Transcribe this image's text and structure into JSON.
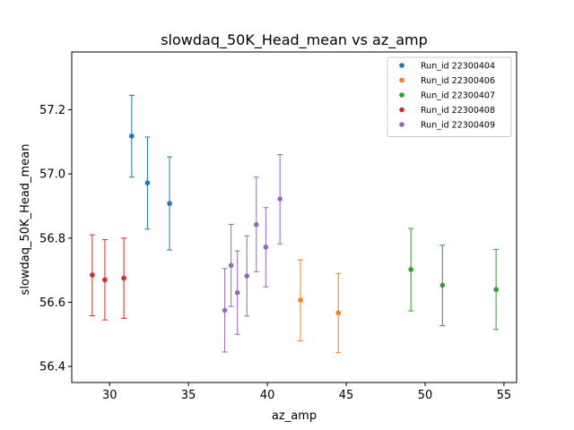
{
  "chart_data": {
    "type": "scatter",
    "title": "slowdaq_50K_Head_mean vs az_amp",
    "xlabel": "az_amp",
    "ylabel": "slowdaq_50K_Head_mean",
    "xlim": [
      27.6,
      55.8
    ],
    "ylim": [
      56.35,
      57.38
    ],
    "xticks": [
      30,
      35,
      40,
      45,
      50,
      55
    ],
    "yticks": [
      56.4,
      56.6,
      56.8,
      57.0,
      57.2
    ],
    "xtick_labels": [
      "30",
      "35",
      "40",
      "45",
      "50",
      "55"
    ],
    "ytick_labels": [
      "56.4",
      "56.6",
      "56.8",
      "57.0",
      "57.2"
    ],
    "legend_position": "top-right",
    "error_bars": true,
    "series": [
      {
        "name": "Run_id 22300404",
        "color": "#1f77b4",
        "points": [
          {
            "x": 31.4,
            "y": 57.118,
            "ylow": 56.99,
            "yhigh": 57.245
          },
          {
            "x": 32.4,
            "y": 56.972,
            "ylow": 56.828,
            "yhigh": 57.115
          },
          {
            "x": 33.8,
            "y": 56.908,
            "ylow": 56.763,
            "yhigh": 57.053
          }
        ]
      },
      {
        "name": "Run_id 22300406",
        "color": "#ff7f0e",
        "points": [
          {
            "x": 42.1,
            "y": 56.607,
            "ylow": 56.48,
            "yhigh": 56.732
          },
          {
            "x": 44.5,
            "y": 56.567,
            "ylow": 56.443,
            "yhigh": 56.69
          }
        ]
      },
      {
        "name": "Run_id 22300407",
        "color": "#2ca02c",
        "points": [
          {
            "x": 49.1,
            "y": 56.702,
            "ylow": 56.573,
            "yhigh": 56.83
          },
          {
            "x": 51.1,
            "y": 56.653,
            "ylow": 56.527,
            "yhigh": 56.778
          },
          {
            "x": 54.5,
            "y": 56.64,
            "ylow": 56.515,
            "yhigh": 56.765
          }
        ]
      },
      {
        "name": "Run_id 22300408",
        "color": "#d62728",
        "points": [
          {
            "x": 28.9,
            "y": 56.685,
            "ylow": 56.558,
            "yhigh": 56.81
          },
          {
            "x": 29.7,
            "y": 56.67,
            "ylow": 56.545,
            "yhigh": 56.795
          },
          {
            "x": 30.9,
            "y": 56.675,
            "ylow": 56.55,
            "yhigh": 56.8
          }
        ]
      },
      {
        "name": "Run_id 22300409",
        "color": "#9467bd",
        "points": [
          {
            "x": 37.3,
            "y": 56.575,
            "ylow": 56.445,
            "yhigh": 56.705
          },
          {
            "x": 37.7,
            "y": 56.715,
            "ylow": 56.587,
            "yhigh": 56.843
          },
          {
            "x": 38.1,
            "y": 56.63,
            "ylow": 56.5,
            "yhigh": 56.76
          },
          {
            "x": 38.7,
            "y": 56.682,
            "ylow": 56.557,
            "yhigh": 56.807
          },
          {
            "x": 39.3,
            "y": 56.842,
            "ylow": 56.695,
            "yhigh": 56.99
          },
          {
            "x": 39.9,
            "y": 56.772,
            "ylow": 56.648,
            "yhigh": 56.895
          },
          {
            "x": 40.8,
            "y": 56.922,
            "ylow": 56.782,
            "yhigh": 57.06
          }
        ]
      }
    ]
  }
}
